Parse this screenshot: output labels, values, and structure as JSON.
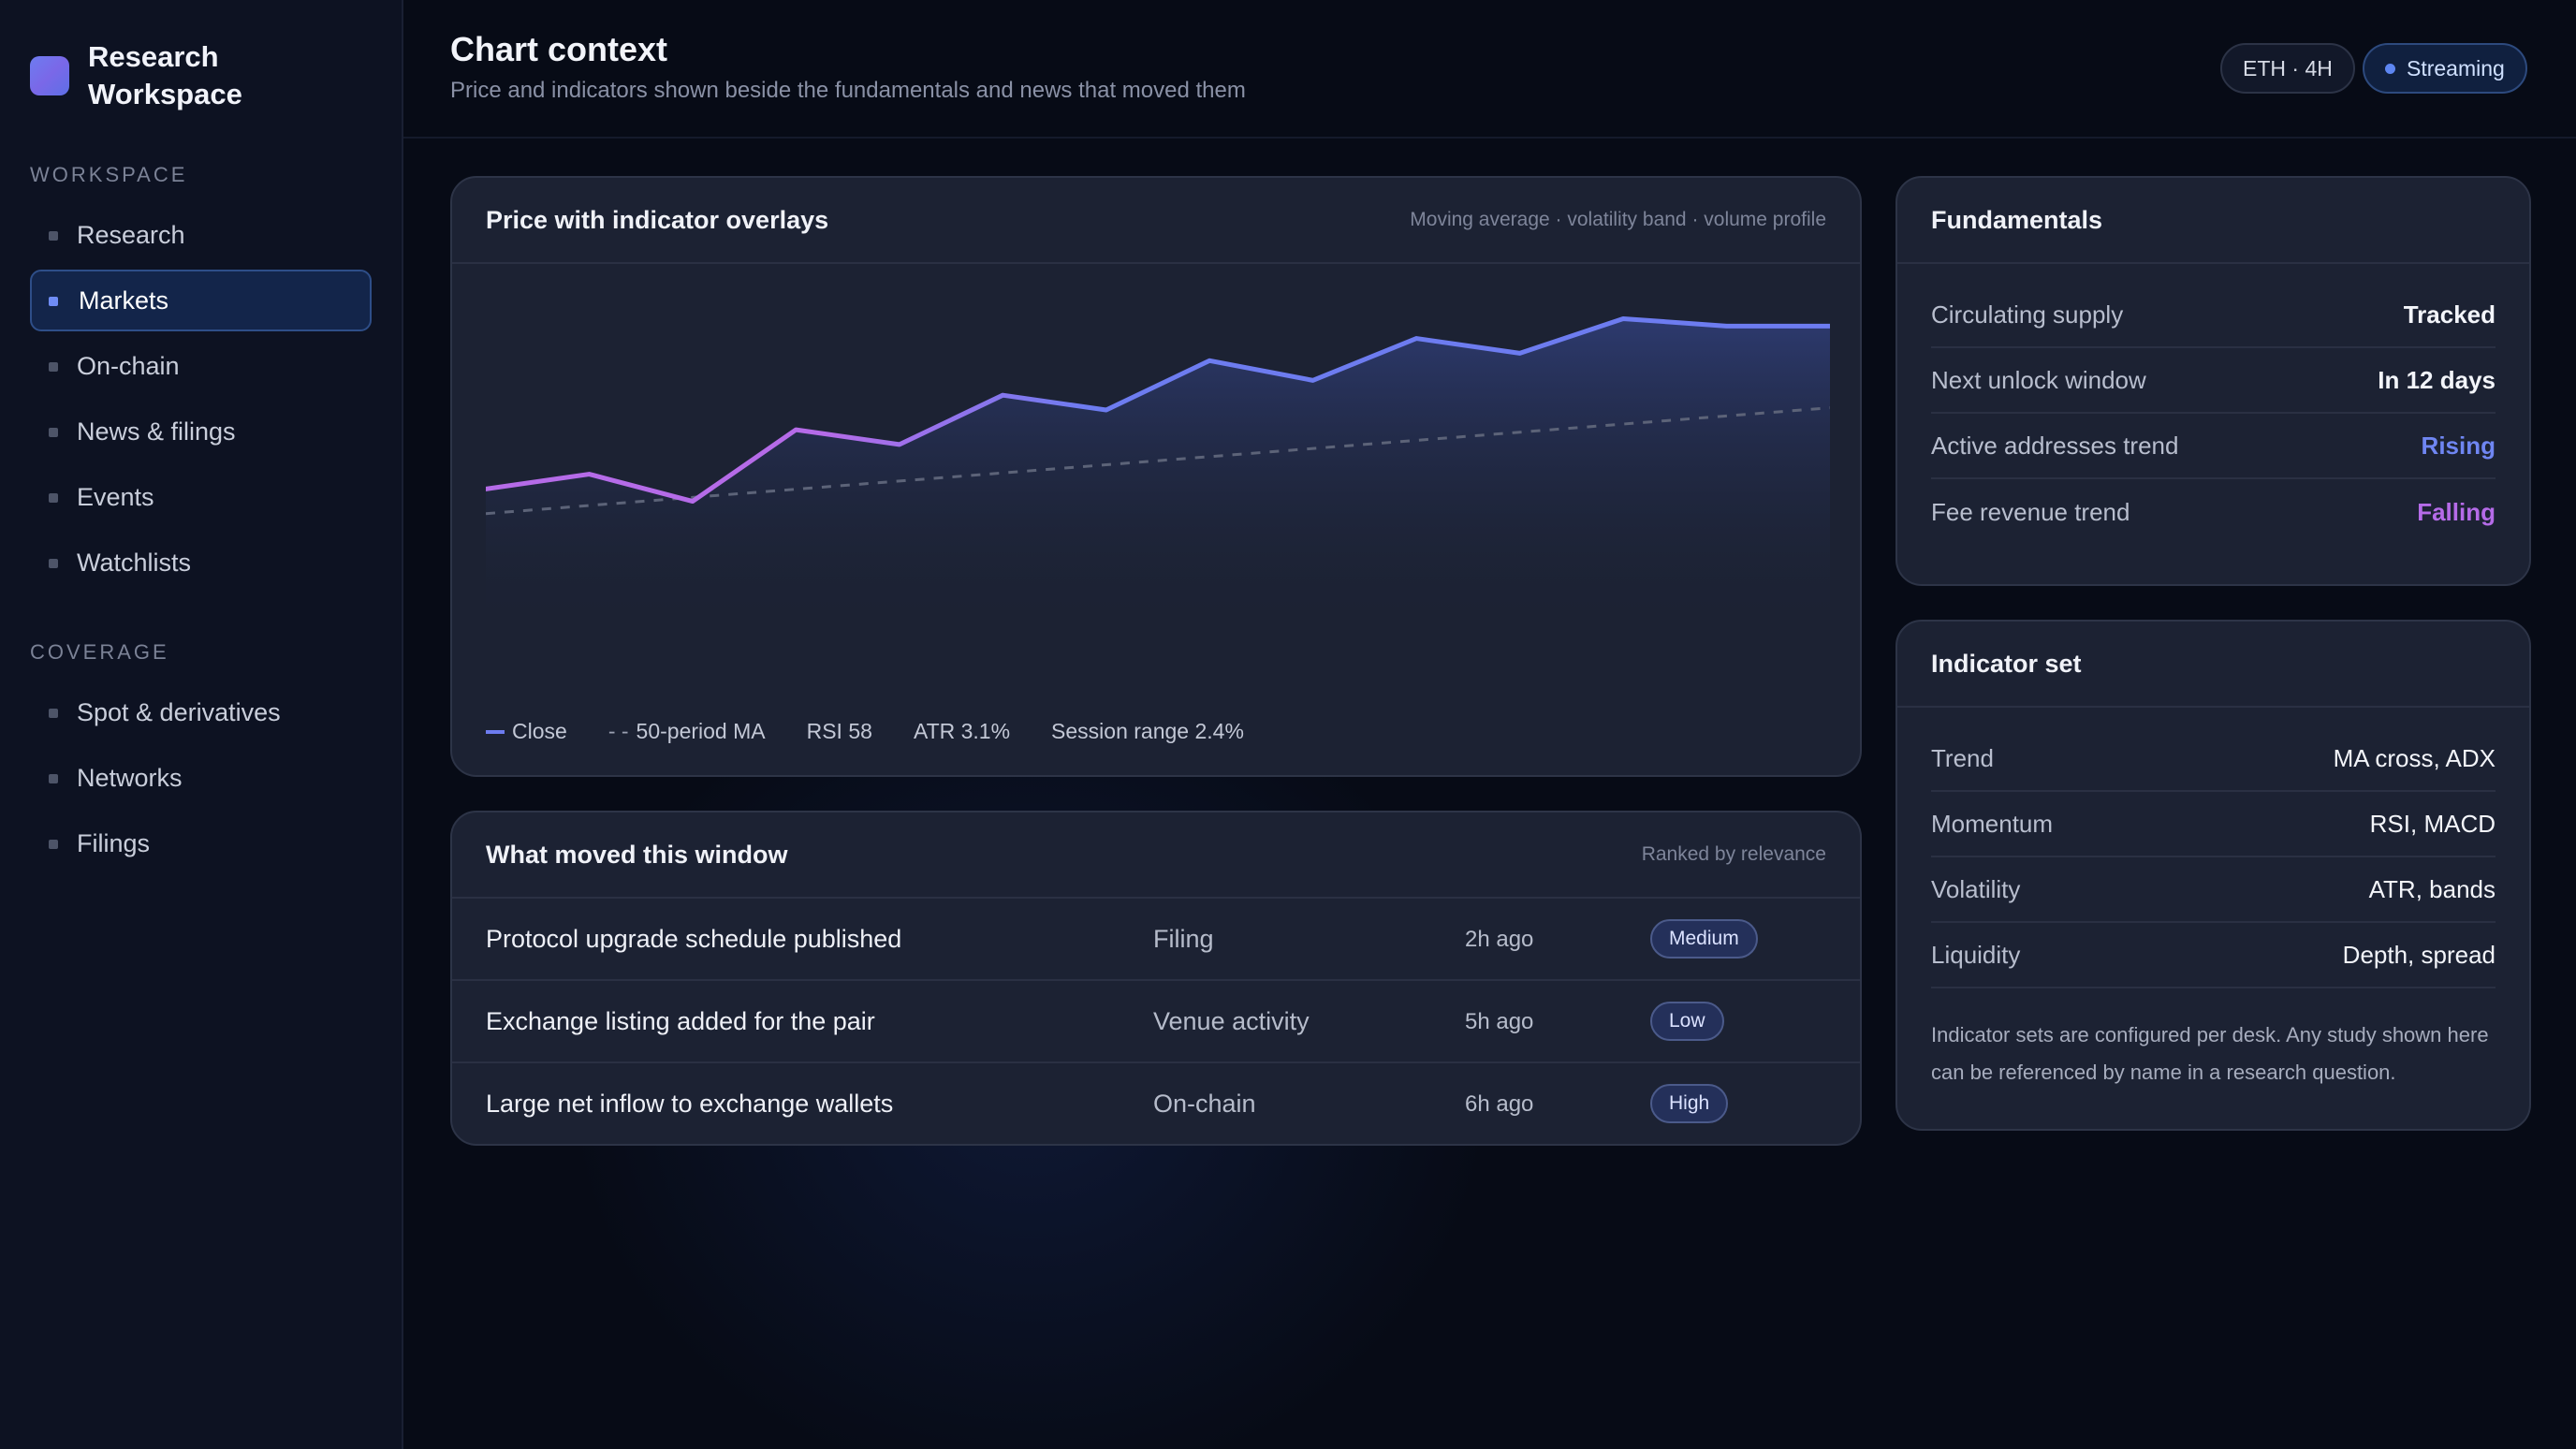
{
  "brand": {
    "title": "Research Workspace"
  },
  "sidebar": {
    "workspace_label": "WORKSPACE",
    "workspace_items": [
      {
        "label": "Research",
        "active": false
      },
      {
        "label": "Markets",
        "active": true
      },
      {
        "label": "On-chain",
        "active": false
      },
      {
        "label": "News & filings",
        "active": false
      },
      {
        "label": "Events",
        "active": false
      },
      {
        "label": "Watchlists",
        "active": false
      }
    ],
    "coverage_label": "COVERAGE",
    "coverage_items": [
      {
        "label": "Spot & derivatives"
      },
      {
        "label": "Networks"
      },
      {
        "label": "Filings"
      }
    ]
  },
  "header": {
    "title": "Chart context",
    "subtitle": "Price and indicators shown beside the fundamentals and news that moved them",
    "pair_chip": "ETH · 4H",
    "status_chip": "Streaming"
  },
  "chart_card": {
    "title": "Price with indicator overlays",
    "hint": "Moving average · volatility band · volume profile",
    "legend": {
      "close": "Close",
      "ma": "50-period MA",
      "rsi": "RSI 58",
      "atr": "ATR 3.1%",
      "range": "Session range 2.4%"
    }
  },
  "chart_data": {
    "type": "line",
    "title": "Price with indicator overlays",
    "x": [
      0,
      1,
      2,
      3,
      4,
      5,
      6,
      7,
      8,
      9,
      10,
      11,
      12,
      13
    ],
    "series": [
      {
        "name": "Close",
        "values": [
          34,
          40,
          29,
          58,
          52,
          72,
          66,
          86,
          78,
          95,
          89,
          103,
          100,
          100
        ]
      },
      {
        "name": "50-period MA",
        "values": [
          24,
          27.3,
          30.6,
          33.9,
          37.2,
          40.5,
          43.8,
          47.1,
          50.4,
          53.7,
          57,
          60.3,
          63.6,
          66.9
        ]
      }
    ],
    "ylim": [
      0,
      110
    ],
    "grid": false,
    "legend_position": "bottom-left",
    "colors": {
      "close_start": "#b56be8",
      "close_end": "#6d7cf0",
      "ma": "#5c6378"
    }
  },
  "news_card": {
    "title": "What moved this window",
    "hint": "Ranked by relevance",
    "rows": [
      {
        "title": "Protocol upgrade schedule published",
        "category": "Filing",
        "time": "2h ago",
        "impact": "Medium"
      },
      {
        "title": "Exchange listing added for the pair",
        "category": "Venue activity",
        "time": "5h ago",
        "impact": "Low"
      },
      {
        "title": "Large net inflow to exchange wallets",
        "category": "On-chain",
        "time": "6h ago",
        "impact": "High"
      }
    ]
  },
  "fundamentals": {
    "title": "Fundamentals",
    "rows": [
      {
        "label": "Circulating supply",
        "value": "Tracked"
      },
      {
        "label": "Next unlock window",
        "value": "In 12 days"
      },
      {
        "label": "Active addresses trend",
        "value": "Rising"
      },
      {
        "label": "Fee revenue trend",
        "value": "Falling"
      }
    ]
  },
  "indicator_set": {
    "title": "Indicator set",
    "rows": [
      {
        "label": "Trend",
        "value": "MA cross, ADX"
      },
      {
        "label": "Momentum",
        "value": "RSI, MACD"
      },
      {
        "label": "Volatility",
        "value": "ATR, bands"
      },
      {
        "label": "Liquidity",
        "value": "Depth, spread"
      }
    ],
    "note": "Indicator sets are configured per desk. Any study shown here can be referenced by name in a research question."
  }
}
